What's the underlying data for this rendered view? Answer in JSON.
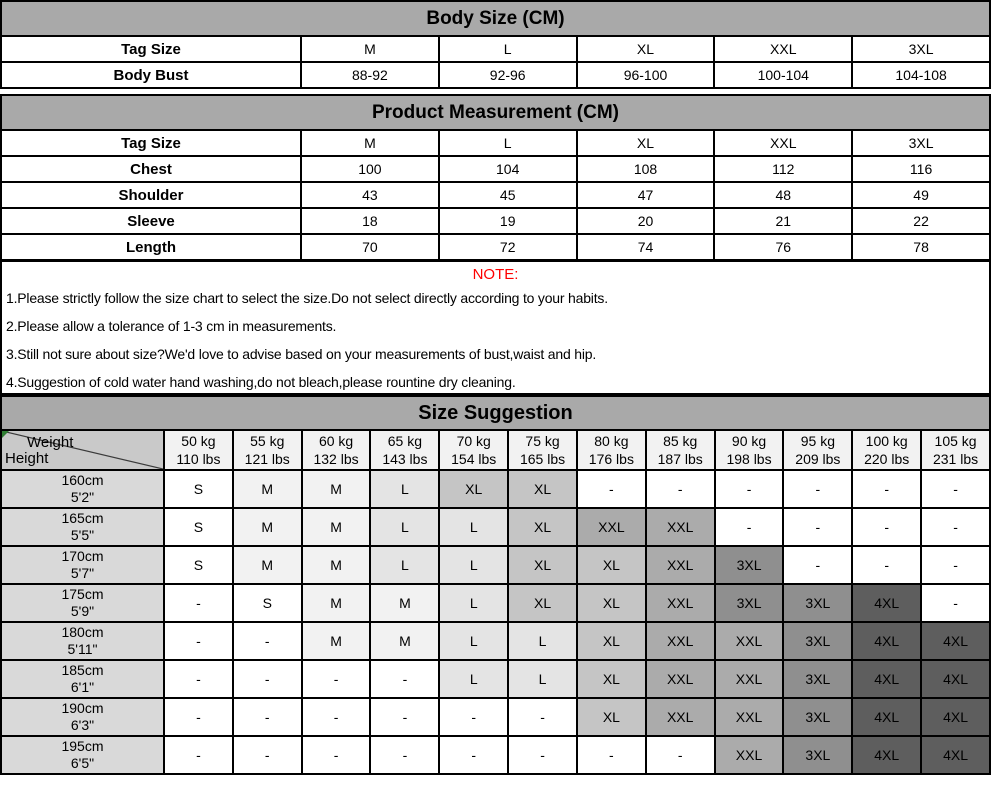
{
  "colors": {
    "section_header_bg": "#a9a9a9",
    "border": "#000000",
    "note_title_color": "#fe0000",
    "height_col_bg": "#d9d9d9",
    "weight_header_bg": "#f2f2f2",
    "corner_bg": "#c9c9c9",
    "corner_marker_green": "#2f7d33",
    "size_shades": {
      "S": "#ffffff",
      "M": "#f2f2f2",
      "L": "#e4e4e4",
      "XL": "#c5c5c5",
      "XXL": "#ababab",
      "3XL": "#8f8f8f",
      "4XL": "#5e5e5e",
      "-": "#ffffff"
    }
  },
  "body_size": {
    "title": "Body Size (CM)",
    "rows": [
      {
        "label": "Tag Size",
        "values": [
          "M",
          "L",
          "XL",
          "XXL",
          "3XL"
        ]
      },
      {
        "label": "Body Bust",
        "values": [
          "88-92",
          "92-96",
          "96-100",
          "100-104",
          "104-108"
        ]
      }
    ]
  },
  "product_measurement": {
    "title": "Product Measurement (CM)",
    "rows": [
      {
        "label": "Tag Size",
        "values": [
          "M",
          "L",
          "XL",
          "XXL",
          "3XL"
        ]
      },
      {
        "label": "Chest",
        "values": [
          "100",
          "104",
          "108",
          "112",
          "116"
        ]
      },
      {
        "label": "Shoulder",
        "values": [
          "43",
          "45",
          "47",
          "48",
          "49"
        ]
      },
      {
        "label": "Sleeve",
        "values": [
          "18",
          "19",
          "20",
          "21",
          "22"
        ]
      },
      {
        "label": "Length",
        "values": [
          "70",
          "72",
          "74",
          "76",
          "78"
        ]
      }
    ]
  },
  "note": {
    "title": "NOTE:",
    "lines": [
      "1.Please strictly follow the size chart to select the size.Do not select directly according to your habits.",
      "2.Please allow a tolerance of 1-3 cm in measurements.",
      "3.Still not sure about size?We'd love to advise based on your measurements of bust,waist and hip.",
      "4.Suggestion of cold water hand washing,do not bleach,please rountine dry cleaning."
    ]
  },
  "size_suggestion": {
    "title": "Size Suggestion",
    "corner": {
      "top_label": "Weight",
      "bottom_label": "Height"
    },
    "weights": [
      {
        "kg": "50 kg",
        "lbs": "110 lbs"
      },
      {
        "kg": "55 kg",
        "lbs": "121 lbs"
      },
      {
        "kg": "60 kg",
        "lbs": "132 lbs"
      },
      {
        "kg": "65 kg",
        "lbs": "143 lbs"
      },
      {
        "kg": "70 kg",
        "lbs": "154 lbs"
      },
      {
        "kg": "75 kg",
        "lbs": "165 lbs"
      },
      {
        "kg": "80 kg",
        "lbs": "176 lbs"
      },
      {
        "kg": "85 kg",
        "lbs": "187 lbs"
      },
      {
        "kg": "90 kg",
        "lbs": "198 lbs"
      },
      {
        "kg": "95 kg",
        "lbs": "209 lbs"
      },
      {
        "kg": "100 kg",
        "lbs": "220 lbs"
      },
      {
        "kg": "105 kg",
        "lbs": "231 lbs"
      }
    ],
    "heights": [
      {
        "cm": "160cm",
        "imperial": "5'2\""
      },
      {
        "cm": "165cm",
        "imperial": "5'5\""
      },
      {
        "cm": "170cm",
        "imperial": "5'7\""
      },
      {
        "cm": "175cm",
        "imperial": "5'9\""
      },
      {
        "cm": "180cm",
        "imperial": "5'11\""
      },
      {
        "cm": "185cm",
        "imperial": "6'1\""
      },
      {
        "cm": "190cm",
        "imperial": "6'3\""
      },
      {
        "cm": "195cm",
        "imperial": "6'5\""
      }
    ],
    "matrix": [
      [
        "S",
        "M",
        "M",
        "L",
        "XL",
        "XL",
        "-",
        "-",
        "-",
        "-",
        "-",
        "-"
      ],
      [
        "S",
        "M",
        "M",
        "L",
        "L",
        "XL",
        "XXL",
        "XXL",
        "-",
        "-",
        "-",
        "-"
      ],
      [
        "S",
        "M",
        "M",
        "L",
        "L",
        "XL",
        "XL",
        "XXL",
        "3XL",
        "-",
        "-",
        "-"
      ],
      [
        "-",
        "S",
        "M",
        "M",
        "L",
        "XL",
        "XL",
        "XXL",
        "3XL",
        "3XL",
        "4XL",
        "-"
      ],
      [
        "-",
        "-",
        "M",
        "M",
        "L",
        "L",
        "XL",
        "XXL",
        "XXL",
        "3XL",
        "4XL",
        "4XL"
      ],
      [
        "-",
        "-",
        "-",
        "-",
        "L",
        "L",
        "XL",
        "XXL",
        "XXL",
        "3XL",
        "4XL",
        "4XL"
      ],
      [
        "-",
        "-",
        "-",
        "-",
        "-",
        "-",
        "XL",
        "XXL",
        "XXL",
        "3XL",
        "4XL",
        "4XL"
      ],
      [
        "-",
        "-",
        "-",
        "-",
        "-",
        "-",
        "-",
        "-",
        "XXL",
        "3XL",
        "4XL",
        "4XL"
      ]
    ]
  },
  "chart_data": [
    {
      "type": "table",
      "title": "Body Size (CM)",
      "columns": [
        "Tag Size",
        "M",
        "L",
        "XL",
        "XXL",
        "3XL"
      ],
      "rows": [
        [
          "Body Bust",
          "88-92",
          "92-96",
          "96-100",
          "100-104",
          "104-108"
        ]
      ]
    },
    {
      "type": "table",
      "title": "Product Measurement (CM)",
      "columns": [
        "Tag Size",
        "M",
        "L",
        "XL",
        "XXL",
        "3XL"
      ],
      "rows": [
        [
          "Chest",
          "100",
          "104",
          "108",
          "112",
          "116"
        ],
        [
          "Shoulder",
          "43",
          "45",
          "47",
          "48",
          "49"
        ],
        [
          "Sleeve",
          "18",
          "19",
          "20",
          "21",
          "22"
        ],
        [
          "Length",
          "70",
          "72",
          "74",
          "76",
          "78"
        ]
      ]
    },
    {
      "type": "table",
      "title": "Size Suggestion",
      "columns": [
        "Height \\ Weight",
        "50 kg / 110 lbs",
        "55 kg / 121 lbs",
        "60 kg / 132 lbs",
        "65 kg / 143 lbs",
        "70 kg / 154 lbs",
        "75 kg / 165 lbs",
        "80 kg / 176 lbs",
        "85 kg / 187 lbs",
        "90 kg / 198 lbs",
        "95 kg / 209 lbs",
        "100 kg / 220 lbs",
        "105 kg / 231 lbs"
      ],
      "rows": [
        [
          "160cm 5'2\"",
          "S",
          "M",
          "M",
          "L",
          "XL",
          "XL",
          "-",
          "-",
          "-",
          "-",
          "-",
          "-"
        ],
        [
          "165cm 5'5\"",
          "S",
          "M",
          "M",
          "L",
          "L",
          "XL",
          "XXL",
          "XXL",
          "-",
          "-",
          "-",
          "-"
        ],
        [
          "170cm 5'7\"",
          "S",
          "M",
          "M",
          "L",
          "L",
          "XL",
          "XL",
          "XXL",
          "3XL",
          "-",
          "-",
          "-"
        ],
        [
          "175cm 5'9\"",
          "-",
          "S",
          "M",
          "M",
          "L",
          "XL",
          "XL",
          "XXL",
          "3XL",
          "3XL",
          "4XL",
          "-"
        ],
        [
          "180cm 5'11\"",
          "-",
          "-",
          "M",
          "M",
          "L",
          "L",
          "XL",
          "XXL",
          "XXL",
          "3XL",
          "4XL",
          "4XL"
        ],
        [
          "185cm 6'1\"",
          "-",
          "-",
          "-",
          "-",
          "L",
          "L",
          "XL",
          "XXL",
          "XXL",
          "3XL",
          "4XL",
          "4XL"
        ],
        [
          "190cm 6'3\"",
          "-",
          "-",
          "-",
          "-",
          "-",
          "-",
          "XL",
          "XXL",
          "XXL",
          "3XL",
          "4XL",
          "4XL"
        ],
        [
          "195cm 6'5\"",
          "-",
          "-",
          "-",
          "-",
          "-",
          "-",
          "-",
          "-",
          "XXL",
          "3XL",
          "4XL",
          "4XL"
        ]
      ]
    }
  ]
}
